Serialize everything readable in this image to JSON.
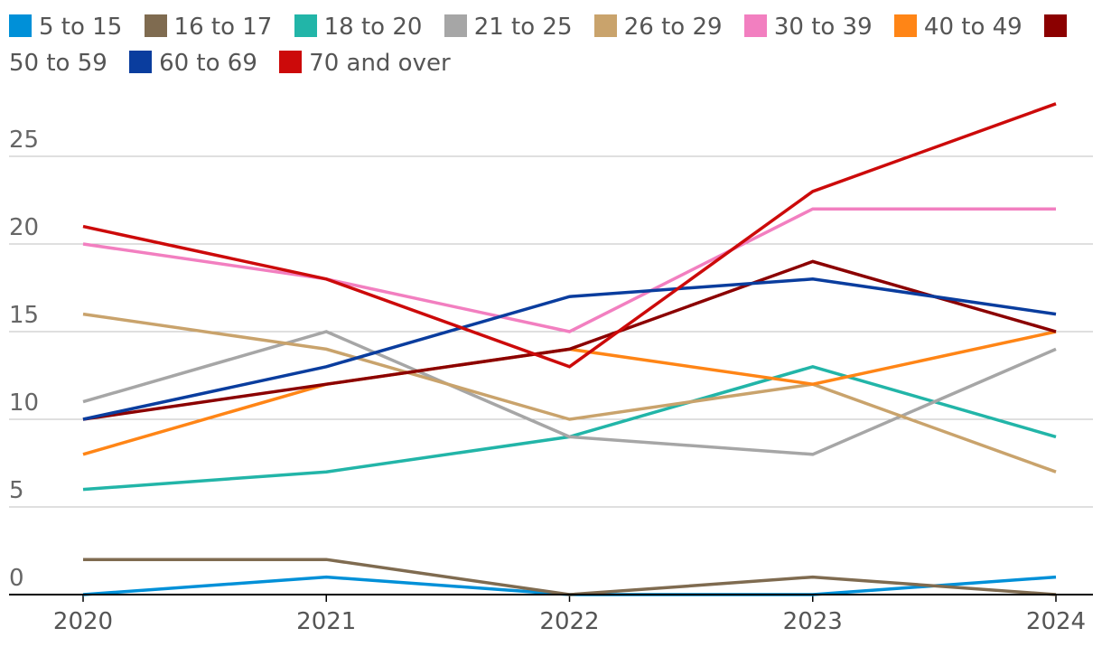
{
  "chart_data": {
    "type": "line",
    "title": "",
    "xlabel": "",
    "ylabel": "",
    "x": [
      "2020",
      "2021",
      "2022",
      "2023",
      "2024"
    ],
    "ylim": [
      0,
      28
    ],
    "yticks": [
      "0",
      "5",
      "10",
      "15",
      "20",
      "25"
    ],
    "grid": true,
    "legend": "top",
    "series": [
      {
        "name": "5 to 15",
        "color": "#0090d8",
        "values": [
          0,
          1,
          0,
          0,
          1
        ]
      },
      {
        "name": "16 to 17",
        "color": "#7f6b50",
        "values": [
          2,
          2,
          0,
          1,
          0
        ]
      },
      {
        "name": "18 to 20",
        "color": "#22b5a8",
        "values": [
          6,
          7,
          9,
          13,
          9
        ]
      },
      {
        "name": "21 to 25",
        "color": "#a6a6a6",
        "values": [
          11,
          15,
          9,
          8,
          14
        ]
      },
      {
        "name": "26 to 29",
        "color": "#c9a36c",
        "values": [
          16,
          14,
          10,
          12,
          7
        ]
      },
      {
        "name": "30 to 39",
        "color": "#f27fc0",
        "values": [
          20,
          18,
          15,
          22,
          22
        ]
      },
      {
        "name": "40 to 49",
        "color": "#ff8516",
        "values": [
          8,
          12,
          14,
          12,
          15
        ]
      },
      {
        "name": "50 to 59",
        "color": "#8b0000",
        "values": [
          10,
          12,
          14,
          19,
          15
        ]
      },
      {
        "name": "60 to 69",
        "color": "#0a3d9e",
        "values": [
          10,
          13,
          17,
          18,
          16
        ]
      },
      {
        "name": "70 and over",
        "color": "#cc0a0a",
        "values": [
          21,
          18,
          13,
          23,
          28
        ]
      }
    ]
  }
}
